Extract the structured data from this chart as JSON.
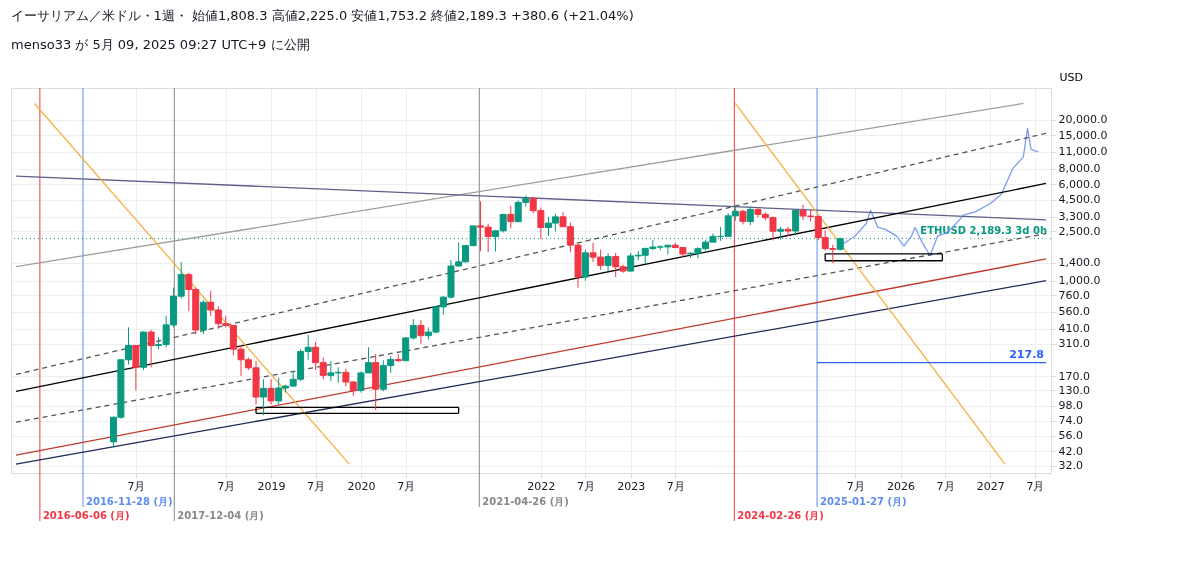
{
  "chart_data": {
    "type": "candlestick",
    "title": "イーサリアム／米ドル・1週・ 始値1,808.3 高値2,225.0 安値1,753.2 終値2,189.3 +380.6 (+21.04%)",
    "ylabel": "USD",
    "annotations": [
      "menso33 が 5月 09, 2025 09:27 UTC+9 に公開",
      {
        "text": "217.8",
        "x": "2027-08-15",
        "y": 217.8
      }
    ],
    "x": [
      "2017-04",
      "2017-05",
      "2017-06",
      "2017-07",
      "2017-08",
      "2017-09",
      "2017-10",
      "2017-11",
      "2017-12",
      "2018-01",
      "2018-02",
      "2018-03",
      "2018-04",
      "2018-05",
      "2018-06",
      "2018-07",
      "2018-08",
      "2018-09",
      "2018-10",
      "2018-11",
      "2018-12",
      "2019-01",
      "2019-02",
      "2019-03",
      "2019-04",
      "2019-05",
      "2019-06",
      "2019-07",
      "2019-08",
      "2019-09",
      "2019-10",
      "2019-11",
      "2019-12",
      "2020-01",
      "2020-02",
      "2020-03",
      "2020-04",
      "2020-05",
      "2020-06",
      "2020-07",
      "2020-08",
      "2020-09",
      "2020-10",
      "2020-11",
      "2020-12",
      "2021-01",
      "2021-02",
      "2021-03",
      "2021-04",
      "2021-05",
      "2021-06",
      "2021-07",
      "2021-08",
      "2021-09",
      "2021-10",
      "2021-11",
      "2021-12",
      "2022-01",
      "2022-02",
      "2022-03",
      "2022-04",
      "2022-05",
      "2022-06",
      "2022-07",
      "2022-08",
      "2022-09",
      "2022-10",
      "2022-11",
      "2022-12",
      "2023-01",
      "2023-02",
      "2023-03",
      "2023-04",
      "2023-05",
      "2023-06",
      "2023-07",
      "2023-08",
      "2023-09",
      "2023-10",
      "2023-11",
      "2023-12",
      "2024-01",
      "2024-02",
      "2024-03",
      "2024-04",
      "2024-05",
      "2024-06",
      "2024-07",
      "2024-08",
      "2024-09",
      "2024-10",
      "2024-11",
      "2024-12",
      "2025-01",
      "2025-02",
      "2025-03",
      "2025-04",
      "2025-05"
    ],
    "ohlc": [
      [
        50,
        80,
        45,
        79
      ],
      [
        79,
        230,
        77,
        230
      ],
      [
        230,
        420,
        210,
        300
      ],
      [
        300,
        300,
        130,
        200
      ],
      [
        200,
        390,
        190,
        385
      ],
      [
        385,
        400,
        200,
        300
      ],
      [
        300,
        350,
        280,
        305
      ],
      [
        305,
        520,
        290,
        440
      ],
      [
        440,
        880,
        420,
        750
      ],
      [
        750,
        1420,
        720,
        1120
      ],
      [
        1120,
        1160,
        570,
        850
      ],
      [
        850,
        880,
        370,
        400
      ],
      [
        400,
        700,
        370,
        670
      ],
      [
        670,
        830,
        520,
        580
      ],
      [
        580,
        620,
        410,
        450
      ],
      [
        450,
        520,
        420,
        435
      ],
      [
        435,
        440,
        250,
        280
      ],
      [
        280,
        300,
        170,
        230
      ],
      [
        230,
        240,
        190,
        198
      ],
      [
        198,
        225,
        100,
        115
      ],
      [
        115,
        160,
        82,
        135
      ],
      [
        135,
        160,
        100,
        107
      ],
      [
        107,
        165,
        100,
        136
      ],
      [
        136,
        145,
        125,
        141
      ],
      [
        141,
        185,
        140,
        160
      ],
      [
        160,
        280,
        155,
        268
      ],
      [
        268,
        365,
        230,
        290
      ],
      [
        290,
        320,
        190,
        218
      ],
      [
        218,
        240,
        160,
        172
      ],
      [
        172,
        225,
        155,
        180
      ],
      [
        180,
        200,
        150,
        182
      ],
      [
        182,
        195,
        140,
        152
      ],
      [
        152,
        155,
        117,
        130
      ],
      [
        130,
        185,
        125,
        180
      ],
      [
        180,
        290,
        180,
        218
      ],
      [
        218,
        255,
        90,
        133
      ],
      [
        133,
        228,
        128,
        206
      ],
      [
        206,
        245,
        180,
        231
      ],
      [
        231,
        255,
        220,
        226
      ],
      [
        226,
        350,
        225,
        345
      ],
      [
        345,
        490,
        335,
        435
      ],
      [
        435,
        480,
        310,
        360
      ],
      [
        360,
        420,
        335,
        385
      ],
      [
        385,
        620,
        375,
        615
      ],
      [
        615,
        750,
        530,
        737
      ],
      [
        737,
        1470,
        715,
        1315
      ],
      [
        1315,
        2040,
        1300,
        1420
      ],
      [
        1420,
        1950,
        1400,
        1920
      ],
      [
        1920,
        2790,
        1900,
        2770
      ],
      [
        2770,
        4380,
        1730,
        2710
      ],
      [
        2710,
        2890,
        1700,
        2275
      ],
      [
        2275,
        2560,
        1720,
        2530
      ],
      [
        2530,
        3470,
        2450,
        3430
      ],
      [
        3430,
        4020,
        2650,
        3000
      ],
      [
        3000,
        4460,
        2970,
        4290
      ],
      [
        4290,
        4870,
        3970,
        4630
      ],
      [
        4630,
        4780,
        3500,
        3680
      ],
      [
        3680,
        3900,
        2160,
        2690
      ],
      [
        2690,
        3280,
        2300,
        2920
      ],
      [
        2920,
        3480,
        2500,
        3280
      ],
      [
        3280,
        3580,
        2720,
        2730
      ],
      [
        2730,
        2950,
        1700,
        1940
      ],
      [
        1940,
        1970,
        880,
        1070
      ],
      [
        1070,
        1790,
        1000,
        1680
      ],
      [
        1680,
        2020,
        1420,
        1550
      ],
      [
        1550,
        1790,
        1220,
        1330
      ],
      [
        1330,
        1660,
        1190,
        1570
      ],
      [
        1570,
        1680,
        1070,
        1295
      ],
      [
        1295,
        1350,
        1160,
        1196
      ],
      [
        1196,
        1680,
        1190,
        1585
      ],
      [
        1585,
        1740,
        1460,
        1605
      ],
      [
        1605,
        1850,
        1370,
        1822
      ],
      [
        1822,
        2140,
        1760,
        1870
      ],
      [
        1870,
        1930,
        1760,
        1875
      ],
      [
        1875,
        1950,
        1630,
        1935
      ],
      [
        1935,
        2030,
        1830,
        1855
      ],
      [
        1855,
        1870,
        1550,
        1645
      ],
      [
        1645,
        1700,
        1530,
        1670
      ],
      [
        1670,
        1870,
        1520,
        1815
      ],
      [
        1815,
        2140,
        1760,
        2050
      ],
      [
        2050,
        2410,
        2050,
        2280
      ],
      [
        2280,
        2720,
        2100,
        2280
      ],
      [
        2280,
        3520,
        2260,
        3340
      ],
      [
        3340,
        4090,
        3050,
        3640
      ],
      [
        3640,
        3730,
        2850,
        3010
      ],
      [
        3010,
        3980,
        2810,
        3760
      ],
      [
        3760,
        3890,
        3240,
        3430
      ],
      [
        3430,
        3560,
        3080,
        3230
      ],
      [
        3230,
        3300,
        2120,
        2510
      ],
      [
        2510,
        2730,
        2150,
        2600
      ],
      [
        2600,
        2720,
        2300,
        2520
      ],
      [
        2520,
        3740,
        2350,
        3700
      ],
      [
        3700,
        4110,
        3090,
        3330
      ],
      [
        3330,
        3740,
        3000,
        3300
      ],
      [
        3300,
        3330,
        2120,
        2230
      ],
      [
        2230,
        2550,
        1750,
        1820
      ],
      [
        1820,
        1950,
        1385,
        1795
      ],
      [
        1795,
        2225,
        1750,
        2189.3
      ]
    ],
    "series": [
      {
        "type": "line",
        "color": "#7b9cf0",
        "x": [
          "2025-05-15",
          "2025-07-01",
          "2025-08-15",
          "2025-09-01",
          "2025-10-01",
          "2025-11-01",
          "2025-12-15",
          "2026-01-15",
          "2026-02-15",
          "2026-03-01",
          "2026-04-01",
          "2026-05-01",
          "2026-06-01",
          "2026-07-01",
          "2026-08-01",
          "2026-09-15",
          "2026-11-01",
          "2027-01-01",
          "2027-02-15",
          "2027-04-01",
          "2027-05-15",
          "2027-06-01",
          "2027-06-15",
          "2027-07-15"
        ],
        "values": [
          2000,
          2300,
          2900,
          3700,
          2700,
          2600,
          2300,
          1900,
          2300,
          2700,
          2000,
          1600,
          2300,
          2400,
          2700,
          3400,
          3600,
          4200,
          5000,
          8000,
          10000,
          17000,
          11500,
          11000
        ]
      },
      {
        "type": "line",
        "color": "#9e9e9e",
        "x": [
          "2016-03-01",
          "2027-05-15"
        ],
        "values": [
          1300,
          27000
        ]
      },
      {
        "type": "line",
        "color": "#5d5f8a",
        "x": [
          "2016-03-01",
          "2027-08-15"
        ],
        "values": [
          7000,
          3100
        ]
      },
      {
        "type": "line",
        "color": "#000000",
        "x": [
          "2016-03-01",
          "2027-08-15"
        ],
        "values": [
          128,
          6100
        ]
      },
      {
        "type": "line",
        "color": "#555555",
        "line_style": "dashed",
        "x": [
          "2016-03-01",
          "2027-08-15"
        ],
        "values": [
          72,
          2400
        ]
      },
      {
        "type": "line",
        "color": "#555555",
        "line_style": "dashed",
        "x": [
          "2016-03-01",
          "2027-08-15"
        ],
        "values": [
          175,
          15500
        ]
      },
      {
        "type": "line",
        "color": "#c0392b",
        "x": [
          "2016-03-01",
          "2027-08-15"
        ],
        "values": [
          39,
          1500
        ]
      },
      {
        "type": "line",
        "color": "#1f2a55",
        "x": [
          "2016-03-01",
          "2027-08-15"
        ],
        "values": [
          33,
          1000
        ]
      },
      {
        "type": "line",
        "color": "#f5b041",
        "x": [
          "2016-05-15",
          "2019-11-15"
        ],
        "values": [
          27000,
          33
        ]
      },
      {
        "type": "line",
        "color": "#f5b041",
        "x": [
          "2024-03-01",
          "2027-03-01"
        ],
        "values": [
          27000,
          33
        ]
      },
      {
        "type": "line",
        "color": "#000000",
        "x": [
          "2018-11-01",
          "2021-02-01"
        ],
        "values": [
          95,
          95
        ]
      },
      {
        "type": "line",
        "color": "#000000",
        "x": [
          "2018-11-01",
          "2021-02-01"
        ],
        "values": [
          85,
          85
        ]
      },
      {
        "type": "line",
        "color": "#000000",
        "x": [
          "2018-11-01",
          "2018-11-01"
        ],
        "values": [
          85,
          95
        ]
      },
      {
        "type": "line",
        "color": "#000000",
        "x": [
          "2021-02-01",
          "2021-02-01"
        ],
        "values": [
          85,
          95
        ]
      },
      {
        "type": "line",
        "color": "#000000",
        "x": [
          "2025-03-01",
          "2026-06-20"
        ],
        "values": [
          1650,
          1650
        ]
      },
      {
        "type": "line",
        "color": "#000000",
        "x": [
          "2025-03-01",
          "2026-06-20"
        ],
        "values": [
          1450,
          1450
        ]
      },
      {
        "type": "line",
        "color": "#000000",
        "x": [
          "2025-03-01",
          "2025-03-01"
        ],
        "values": [
          1450,
          1650
        ]
      },
      {
        "type": "line",
        "color": "#000000",
        "x": [
          "2026-06-20",
          "2026-06-20"
        ],
        "values": [
          1450,
          1650
        ]
      },
      {
        "type": "line",
        "color": "#2962ff",
        "x": [
          "2025-01-27",
          "2027-08-15"
        ],
        "values": [
          217.8,
          217.8
        ]
      }
    ],
    "ref_lines": [
      {
        "axis": "x",
        "value": "2016-06-06",
        "label": "2016-06-06 (月)",
        "color": "#f23645"
      },
      {
        "axis": "x",
        "value": "2016-11-28",
        "label": "2016-11-28 (月)",
        "color": "#5b8def"
      },
      {
        "axis": "x",
        "value": "2017-12-04",
        "label": "2017-12-04 (月)",
        "color": "#888888"
      },
      {
        "axis": "x",
        "value": "2021-04-26",
        "label": "2021-04-26 (月)",
        "color": "#888888"
      },
      {
        "axis": "x",
        "value": "2024-02-26",
        "label": "2024-02-26 (月)",
        "color": "#f23645"
      },
      {
        "axis": "x",
        "value": "2025-01-27",
        "label": "2025-01-27 (月)",
        "color": "#5b8def"
      },
      {
        "axis": "y",
        "value": 2189.3,
        "label": "ETHUSD 2,189.3 3d 0h",
        "color": "#089981",
        "line_style": "dotted"
      }
    ],
    "xlim": [
      "2016-03-01",
      "2027-08-15"
    ],
    "xticks": [
      {
        "value": "2017-07",
        "label": "7月"
      },
      {
        "value": "2018-07",
        "label": "7月"
      },
      {
        "value": "2019",
        "label": "2019"
      },
      {
        "value": "2019-07",
        "label": "7月"
      },
      {
        "value": "2020",
        "label": "2020"
      },
      {
        "value": "2020-07",
        "label": "7月"
      },
      {
        "value": "2022",
        "label": "2022"
      },
      {
        "value": "2022-07",
        "label": "7月"
      },
      {
        "value": "2023",
        "label": "2023"
      },
      {
        "value": "2023-07",
        "label": "7月"
      },
      {
        "value": "2025-07",
        "label": "7月"
      },
      {
        "value": "2026",
        "label": "2026"
      },
      {
        "value": "2026-07",
        "label": "7月"
      },
      {
        "value": "2027",
        "label": "2027"
      },
      {
        "value": "2027-07",
        "label": "7月"
      }
    ],
    "ylim": [
      28,
      36000
    ],
    "log": "y",
    "yticks": [
      {
        "value": 32,
        "label": "32.0"
      },
      {
        "value": 42,
        "label": "42.0"
      },
      {
        "value": 56,
        "label": "56.0"
      },
      {
        "value": 74,
        "label": "74.0"
      },
      {
        "value": 98,
        "label": "98.0"
      },
      {
        "value": 130,
        "label": "130.0"
      },
      {
        "value": 170,
        "label": "170.0"
      },
      {
        "value": 310,
        "label": "310.0"
      },
      {
        "value": 410,
        "label": "410.0"
      },
      {
        "value": 560,
        "label": "560.0"
      },
      {
        "value": 760,
        "label": "760.0"
      },
      {
        "value": 1000,
        "label": "1,000.0"
      },
      {
        "value": 1400,
        "label": "1,400.0"
      },
      {
        "value": 2500,
        "label": "2,500.0"
      },
      {
        "value": 3300,
        "label": "3,300.0"
      },
      {
        "value": 4500,
        "label": "4,500.0"
      },
      {
        "value": 6000,
        "label": "6,000.0"
      },
      {
        "value": 8000,
        "label": "8,000.0"
      },
      {
        "value": 11000,
        "label": "11,000.0"
      },
      {
        "value": 15000,
        "label": "15,000.0"
      },
      {
        "value": 20000,
        "label": "20,000.0"
      }
    ],
    "grid": true
  }
}
